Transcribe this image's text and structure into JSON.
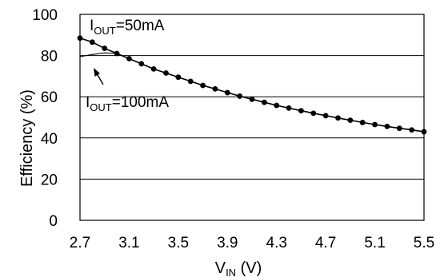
{
  "chart_data": {
    "type": "line",
    "xlabel": "V",
    "xlabel_sub": "IN",
    "xlabel_unit": " (V)",
    "ylabel": "Efficiency (%)",
    "xlim": [
      2.7,
      5.5
    ],
    "ylim": [
      0,
      100
    ],
    "x_ticks": [
      "2.7",
      "3.1",
      "3.5",
      "3.9",
      "4.3",
      "4.7",
      "5.1",
      "5.5"
    ],
    "y_ticks": [
      "0",
      "20",
      "40",
      "60",
      "80",
      "100"
    ],
    "grid": "horizontal",
    "series": [
      {
        "name": "IOUT=50mA",
        "marker": "circle",
        "x": [
          2.7,
          2.8,
          2.9,
          3.0,
          3.1,
          3.2,
          3.3,
          3.4,
          3.5,
          3.6,
          3.7,
          3.8,
          3.9,
          4.0,
          4.1,
          4.2,
          4.3,
          4.4,
          4.5,
          4.6,
          4.7,
          4.8,
          4.9,
          5.0,
          5.1,
          5.2,
          5.3,
          5.4,
          5.5
        ],
        "y": [
          88.5,
          86.5,
          83.5,
          81.0,
          78.5,
          76.0,
          73.5,
          71.5,
          69.5,
          67.5,
          65.5,
          63.8,
          62.0,
          60.3,
          58.8,
          57.3,
          55.8,
          54.5,
          53.2,
          52.0,
          50.8,
          49.7,
          48.6,
          47.5,
          46.5,
          45.6,
          44.7,
          43.9,
          43.0
        ]
      },
      {
        "name": "IOUT=100mA",
        "marker": "none",
        "x": [
          2.7,
          2.8,
          2.9,
          3.0,
          3.1,
          3.2,
          3.3,
          3.4,
          3.5,
          3.6,
          3.7,
          3.8,
          3.9,
          4.0,
          4.1,
          4.2,
          4.3,
          4.4,
          4.5,
          4.6,
          4.7,
          4.8,
          4.9,
          5.0,
          5.1,
          5.2,
          5.3,
          5.4,
          5.5
        ],
        "y": [
          79.5,
          80.5,
          81.3,
          81.0,
          78.5,
          76.0,
          73.5,
          71.5,
          69.5,
          67.5,
          65.5,
          63.8,
          62.0,
          60.3,
          58.8,
          57.3,
          55.8,
          54.5,
          53.2,
          52.0,
          50.8,
          49.7,
          48.6,
          47.5,
          46.5,
          45.6,
          44.7,
          43.9,
          43.0
        ]
      }
    ],
    "annotations": [
      {
        "main": "I",
        "sub": "OUT",
        "rest": "=50mA",
        "series": "IOUT=50mA"
      },
      {
        "main": "I",
        "sub": "OUT",
        "rest": "=100mA",
        "series": "IOUT=100mA"
      }
    ]
  }
}
